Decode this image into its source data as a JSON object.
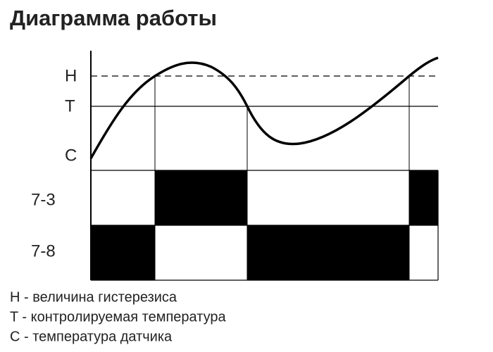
{
  "header": {
    "title": "Диаграмма работы"
  },
  "levels": [
    "H",
    "T",
    "C"
  ],
  "outputs": [
    "7-3",
    "7-8"
  ],
  "legend": [
    "H - величина гистерезиса",
    "T - контролируемая температура",
    "C - температура датчика"
  ]
}
